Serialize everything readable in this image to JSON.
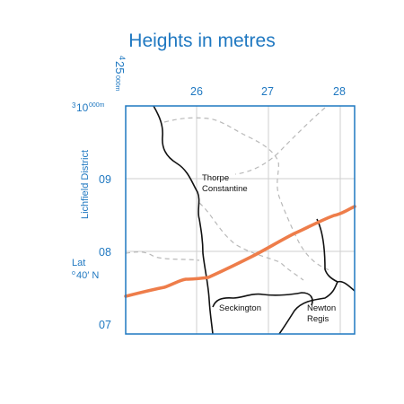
{
  "title": "Heights in metres",
  "easting_origin": {
    "sup": "4",
    "main": "25",
    "sub": "000m"
  },
  "northing_origin": {
    "sup": "3",
    "main": "10",
    "sub": "000m"
  },
  "easting_ticks": [
    "26",
    "27",
    "28"
  ],
  "northing_ticks": [
    "09",
    "08",
    "07"
  ],
  "district_label": "Lichfield District",
  "lat_label": {
    "line1": "Lat",
    "deg": "o",
    "line2": "40′ N"
  },
  "places": [
    {
      "id": "thorpe",
      "line1": "Thorpe",
      "line2": "Constantine"
    },
    {
      "id": "seckington",
      "line1": "Seckington",
      "line2": ""
    },
    {
      "id": "newton",
      "line1": "Newton",
      "line2": "Regis"
    }
  ],
  "colors": {
    "frame": "#1f78c1",
    "road": "#ee7d4a",
    "boundary": "#111111",
    "footpath": "#b9b9b9",
    "grid": "#cfcfcf"
  }
}
